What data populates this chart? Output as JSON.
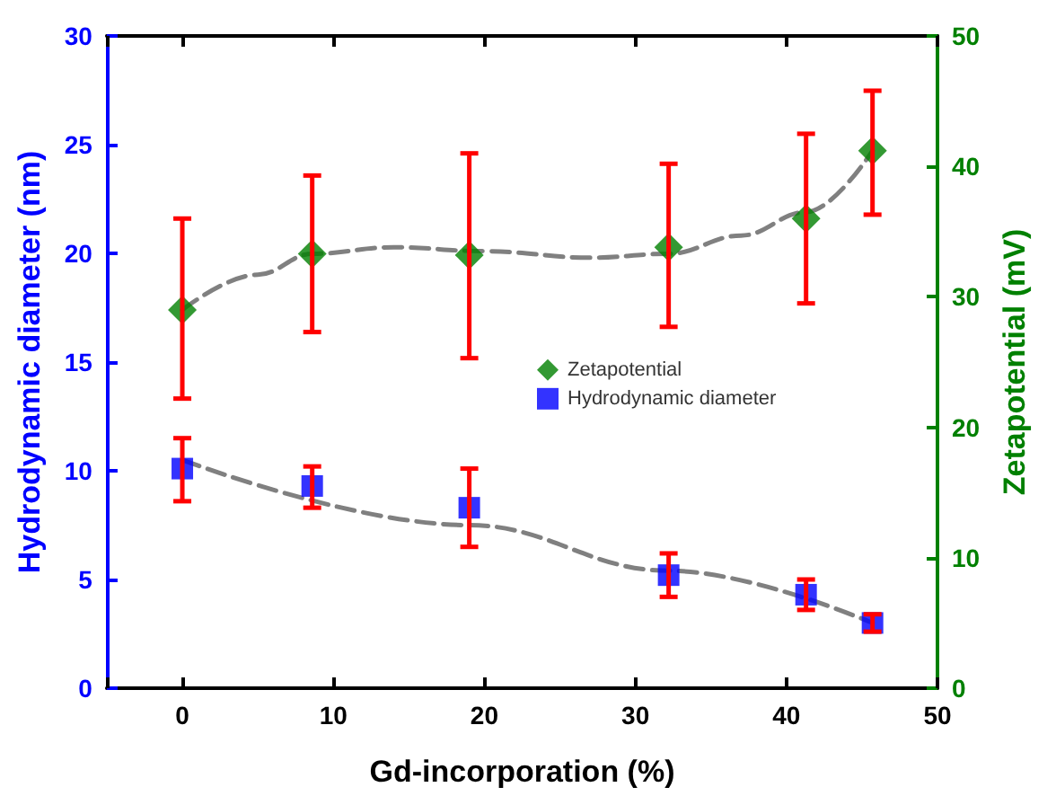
{
  "chart_data": {
    "type": "scatter",
    "xlabel": "Gd-incorporation (%)",
    "ylabel": "Hydrodynamic diameter (nm)",
    "y2label": "Zetapotential (mV)",
    "xlim": [
      -5,
      50
    ],
    "xticks": [
      {
        "value": -5,
        "label": null
      },
      0,
      10,
      20,
      30,
      40,
      50
    ],
    "ylim": [
      0,
      30
    ],
    "yticks": [
      0,
      5,
      10,
      15,
      20,
      25,
      30
    ],
    "y2lim": [
      0,
      50
    ],
    "y2ticks": [
      0,
      10,
      20,
      30,
      40,
      50
    ],
    "legend": "center",
    "grid": false,
    "series": [
      {
        "name": "Zetapotential",
        "axis": "y2",
        "marker": "diamond",
        "color": "#008000",
        "x": [
          0,
          8.6,
          19.0,
          32.2,
          41.3,
          45.7
        ],
        "values": [
          29.0,
          33.3,
          33.2,
          33.8,
          36.0,
          41.2
        ],
        "errors": [
          [
            22.2,
            36.0
          ],
          [
            27.3,
            39.3
          ],
          [
            25.3,
            41.0
          ],
          [
            27.7,
            40.2
          ],
          [
            29.5,
            42.5
          ],
          [
            36.3,
            45.8
          ]
        ]
      },
      {
        "name": "Hydrodynamic diameter",
        "marker": "square",
        "color": "#0000ff",
        "x": [
          0,
          8.6,
          19.0,
          32.2,
          41.3,
          45.7
        ],
        "values": [
          10.1,
          9.3,
          8.3,
          5.2,
          4.3,
          3.0
        ],
        "errors": [
          [
            8.6,
            11.5
          ],
          [
            8.3,
            10.2
          ],
          [
            6.5,
            10.1
          ],
          [
            4.2,
            6.2
          ],
          [
            3.6,
            5.0
          ],
          [
            2.6,
            3.4
          ]
        ]
      },
      {
        "type": "line",
        "axis": "y2",
        "marker": "none",
        "line_style": "dashed",
        "color": "#808080",
        "x": [
          0,
          5,
          8.6,
          14,
          20,
          27,
          32.2,
          37,
          41.3,
          45.7
        ],
        "values": [
          29.0,
          31.7,
          33.3,
          33.8,
          33.5,
          33.0,
          33.3,
          34.7,
          36.5,
          41.2
        ]
      },
      {
        "type": "line",
        "marker": "none",
        "line_style": "dashed",
        "color": "#808080",
        "x": [
          0,
          19,
          32.2,
          45.7
        ],
        "values": [
          10.5,
          7.5,
          5.4,
          3.0
        ]
      }
    ]
  }
}
